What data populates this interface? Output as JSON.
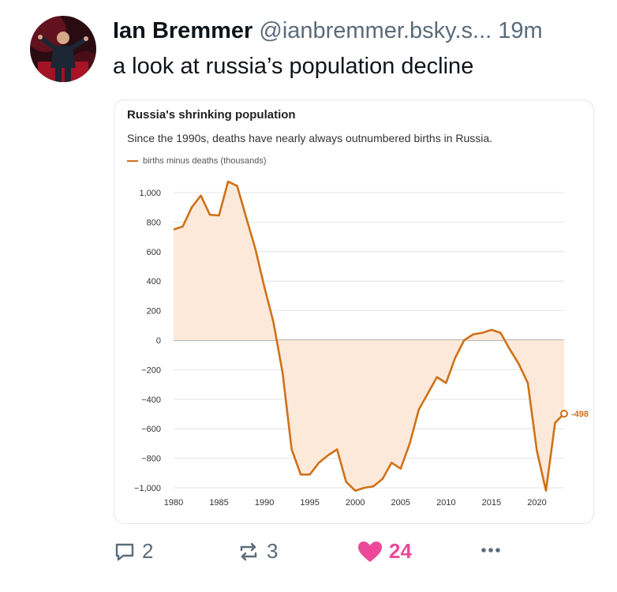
{
  "post": {
    "author_name": "Ian Bremmer",
    "author_handle": "@ianbremmer.bsky.s...",
    "time_ago": "19m",
    "text": "a look at russia’s population decline"
  },
  "chart_card": {
    "title": "Russia's shrinking population",
    "subtitle": "Since the 1990s, deaths have nearly always outnumbered births in Russia.",
    "legend_label": "births minus deaths (thousands)"
  },
  "chart_data": {
    "type": "area",
    "title": "Russia's shrinking population",
    "subtitle": "Since the 1990s, deaths have nearly always outnumbered births in Russia.",
    "xlabel": "",
    "ylabel": "",
    "series": [
      {
        "name": "births minus deaths (thousands)",
        "x": [
          1980,
          1981,
          1982,
          1983,
          1984,
          1985,
          1986,
          1987,
          1988,
          1989,
          1990,
          1991,
          1992,
          1993,
          1994,
          1995,
          1996,
          1997,
          1998,
          1999,
          2000,
          2001,
          2002,
          2003,
          2004,
          2005,
          2006,
          2007,
          2008,
          2009,
          2010,
          2011,
          2012,
          2013,
          2014,
          2015,
          2016,
          2017,
          2018,
          2019,
          2020,
          2021,
          2022,
          2023
        ],
        "values": [
          750,
          770,
          900,
          980,
          850,
          845,
          1075,
          1045,
          830,
          620,
          360,
          120,
          -220,
          -740,
          -910,
          -910,
          -830,
          -780,
          -740,
          -960,
          -1020,
          -1000,
          -990,
          -940,
          -830,
          -870,
          -700,
          -470,
          -360,
          -250,
          -290,
          -120,
          0,
          40,
          50,
          70,
          50,
          -60,
          -160,
          -290,
          -750,
          -1020,
          -560,
          -498
        ]
      }
    ],
    "end_label": "-498",
    "xlim": [
      1980,
      2023
    ],
    "ylim": [
      -1000,
      1000
    ],
    "x_ticks": [
      1980,
      1985,
      1990,
      1995,
      2000,
      2005,
      2010,
      2015,
      2020
    ],
    "y_ticks": [
      1000,
      800,
      600,
      400,
      200,
      0,
      -200,
      -400,
      -600,
      -800,
      -1000
    ],
    "y_tick_labels": [
      "1,000",
      "800",
      "600",
      "400",
      "200",
      "0",
      "−200",
      "−400",
      "−600",
      "−800",
      "−1,000"
    ],
    "grid": true,
    "colors": {
      "line": "#cf7119",
      "fill": "#fde9da",
      "grid": "#dddddd",
      "zero": "#666666"
    }
  },
  "actions": {
    "replies": "2",
    "reposts": "3",
    "likes": "24"
  },
  "colors": {
    "like": "#ec4899",
    "muted": "#5b6b7a"
  }
}
